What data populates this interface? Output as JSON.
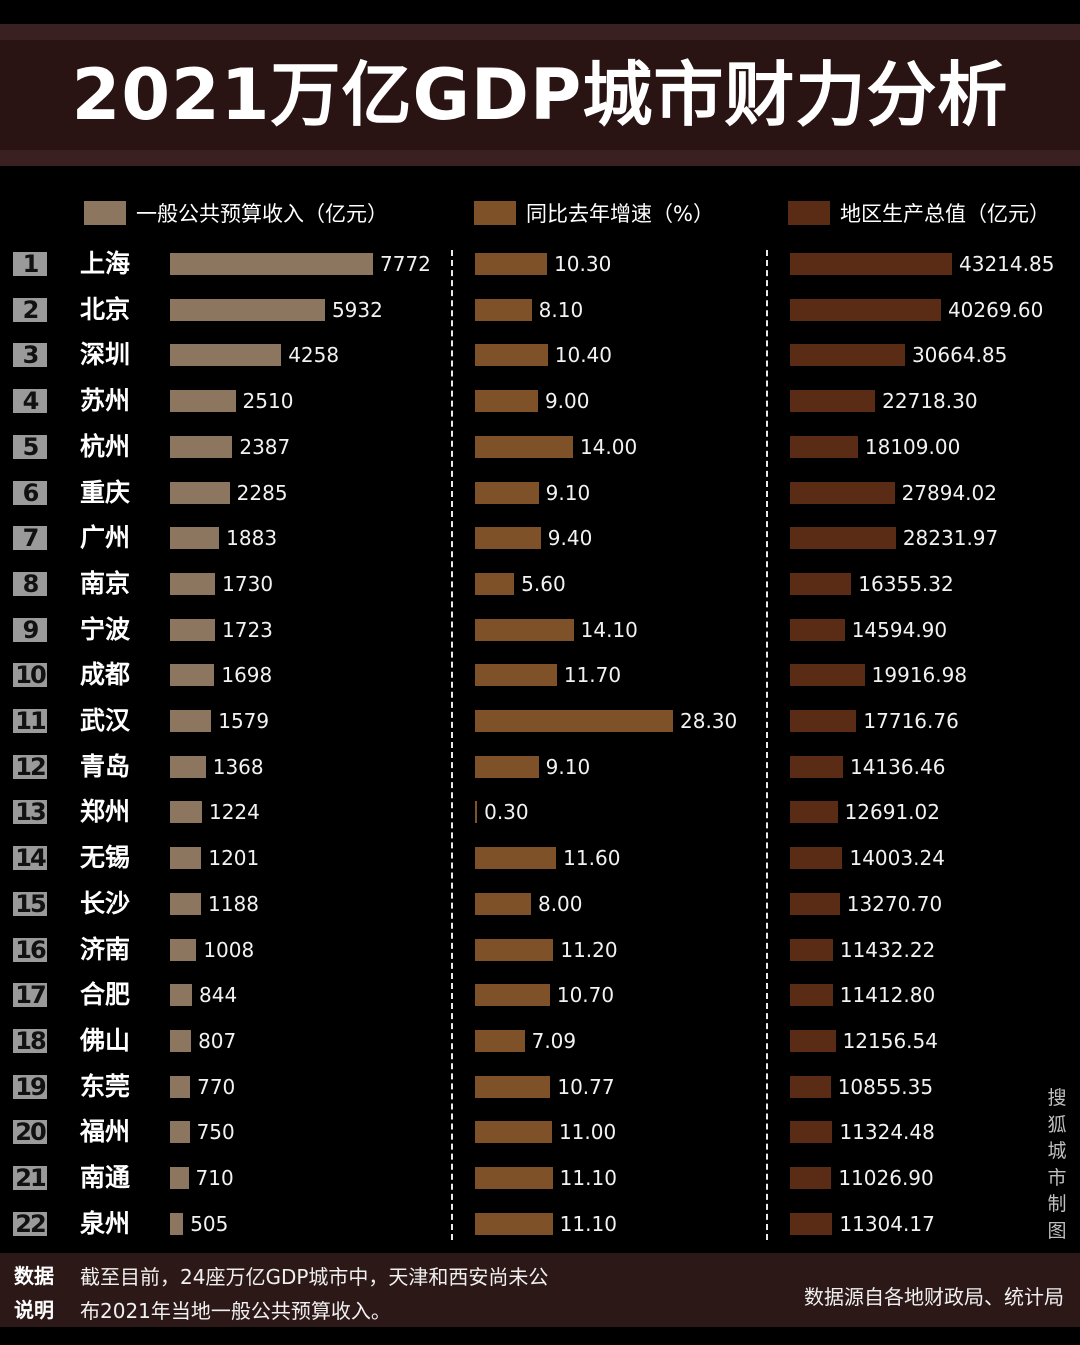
{
  "title": "2021万亿GDP城市财力分析",
  "colors": {
    "revenue": "#8c7660",
    "growth": "#7f5128",
    "gdp": "#5a2c16",
    "badge": "#9a9a9a",
    "title_band": "#2a1313",
    "footer_band": "#2d1818"
  },
  "legend": [
    {
      "label": "一般公共预算收入（亿元）",
      "color": "#8c7660"
    },
    {
      "label": "同比去年增速（%）",
      "color": "#7f5128"
    },
    {
      "label": "地区生产总值（亿元）",
      "color": "#5a2c16"
    }
  ],
  "rows": [
    {
      "rank": "1",
      "city": "上海",
      "revenue": "7772",
      "growth": "10.30",
      "gdp": "43214.85"
    },
    {
      "rank": "2",
      "city": "北京",
      "revenue": "5932",
      "growth": "8.10",
      "gdp": "40269.60"
    },
    {
      "rank": "3",
      "city": "深圳",
      "revenue": "4258",
      "growth": "10.40",
      "gdp": "30664.85"
    },
    {
      "rank": "4",
      "city": "苏州",
      "revenue": "2510",
      "growth": "9.00",
      "gdp": "22718.30"
    },
    {
      "rank": "5",
      "city": "杭州",
      "revenue": "2387",
      "growth": "14.00",
      "gdp": "18109.00"
    },
    {
      "rank": "6",
      "city": "重庆",
      "revenue": "2285",
      "growth": "9.10",
      "gdp": "27894.02"
    },
    {
      "rank": "7",
      "city": "广州",
      "revenue": "1883",
      "growth": "9.40",
      "gdp": "28231.97"
    },
    {
      "rank": "8",
      "city": "南京",
      "revenue": "1730",
      "growth": "5.60",
      "gdp": "16355.32"
    },
    {
      "rank": "9",
      "city": "宁波",
      "revenue": "1723",
      "growth": "14.10",
      "gdp": "14594.90"
    },
    {
      "rank": "10",
      "city": "成都",
      "revenue": "1698",
      "growth": "11.70",
      "gdp": "19916.98"
    },
    {
      "rank": "11",
      "city": "武汉",
      "revenue": "1579",
      "growth": "28.30",
      "gdp": "17716.76"
    },
    {
      "rank": "12",
      "city": "青岛",
      "revenue": "1368",
      "growth": "9.10",
      "gdp": "14136.46"
    },
    {
      "rank": "13",
      "city": "郑州",
      "revenue": "1224",
      "growth": "0.30",
      "gdp": "12691.02"
    },
    {
      "rank": "14",
      "city": "无锡",
      "revenue": "1201",
      "growth": "11.60",
      "gdp": "14003.24"
    },
    {
      "rank": "15",
      "city": "长沙",
      "revenue": "1188",
      "growth": "8.00",
      "gdp": "13270.70"
    },
    {
      "rank": "16",
      "city": "济南",
      "revenue": "1008",
      "growth": "11.20",
      "gdp": "11432.22"
    },
    {
      "rank": "17",
      "city": "合肥",
      "revenue": "844",
      "growth": "10.70",
      "gdp": "11412.80"
    },
    {
      "rank": "18",
      "city": "佛山",
      "revenue": "807",
      "growth": "7.09",
      "gdp": "12156.54"
    },
    {
      "rank": "19",
      "city": "东莞",
      "revenue": "770",
      "growth": "10.77",
      "gdp": "10855.35"
    },
    {
      "rank": "20",
      "city": "福州",
      "revenue": "750",
      "growth": "11.00",
      "gdp": "11324.48"
    },
    {
      "rank": "21",
      "city": "南通",
      "revenue": "710",
      "growth": "11.10",
      "gdp": "11026.90"
    },
    {
      "rank": "22",
      "city": "泉州",
      "revenue": "505",
      "growth": "11.10",
      "gdp": "11304.17"
    }
  ],
  "footer": {
    "label_line1": "数据",
    "label_line2": "说明",
    "note_line1": "截至目前，24座万亿GDP城市中，天津和西安尚未公",
    "note_line2": "布2021年当地一般公共预算收入。",
    "source": "数据源自各地财政局、统计局"
  },
  "watermark": "搜狐城市制图",
  "chart_data": {
    "type": "bar",
    "title": "2021万亿GDP城市财力分析",
    "orientation": "horizontal",
    "categories": [
      "上海",
      "北京",
      "深圳",
      "苏州",
      "杭州",
      "重庆",
      "广州",
      "南京",
      "宁波",
      "成都",
      "武汉",
      "青岛",
      "郑州",
      "无锡",
      "长沙",
      "济南",
      "合肥",
      "佛山",
      "东莞",
      "福州",
      "南通",
      "泉州"
    ],
    "series": [
      {
        "name": "一般公共预算收入（亿元）",
        "values": [
          7772,
          5932,
          4258,
          2510,
          2387,
          2285,
          1883,
          1730,
          1723,
          1698,
          1579,
          1368,
          1224,
          1201,
          1188,
          1008,
          844,
          807,
          770,
          750,
          710,
          505
        ]
      },
      {
        "name": "同比去年增速（%）",
        "values": [
          10.3,
          8.1,
          10.4,
          9.0,
          14.0,
          9.1,
          9.4,
          5.6,
          14.1,
          11.7,
          28.3,
          9.1,
          0.3,
          11.6,
          8.0,
          11.2,
          10.7,
          7.09,
          10.77,
          11.0,
          11.1,
          11.1
        ]
      },
      {
        "name": "地区生产总值（亿元）",
        "values": [
          43214.85,
          40269.6,
          30664.85,
          22718.3,
          18109.0,
          27894.02,
          28231.97,
          16355.32,
          14594.9,
          19916.98,
          17716.76,
          14136.46,
          12691.02,
          14003.24,
          13270.7,
          11432.22,
          11412.8,
          12156.54,
          10855.35,
          11324.48,
          11026.9,
          11304.17
        ]
      }
    ],
    "xlabel": "",
    "ylabel": "",
    "legend_position": "top",
    "grid": false,
    "notes": "截至目前，24座万亿GDP城市中，天津和西安尚未公布2021年当地一般公共预算收入。",
    "source": "数据源自各地财政局、统计局"
  }
}
